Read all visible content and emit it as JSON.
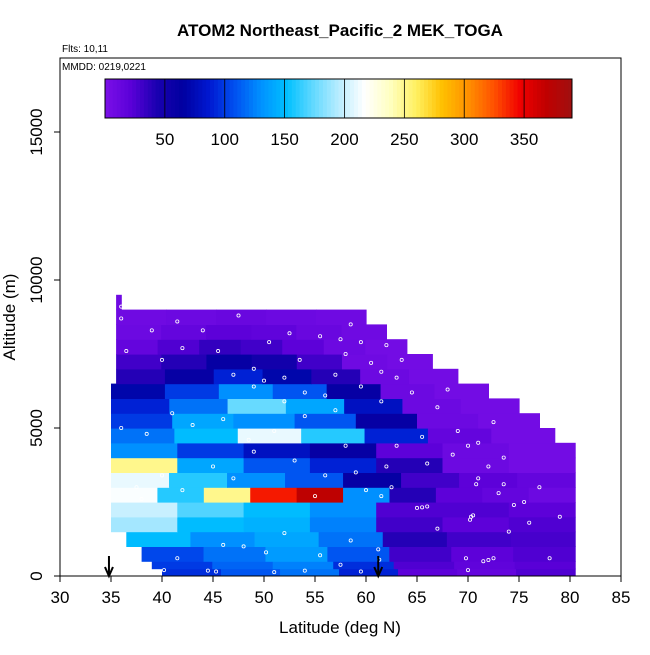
{
  "chart_data": {
    "type": "heatmap",
    "title": "ATOM2 Northeast_Pacific_2 MEK_TOGA",
    "annotations": {
      "flights": "Flts: 10,11",
      "dates": "MMDD: 0219,0221"
    },
    "xlabel": "Latitude (deg N)",
    "ylabel": "Altitude (m)",
    "xlim": [
      30,
      85
    ],
    "ylim": [
      0,
      17500
    ],
    "x_ticks": [
      "30",
      "35",
      "40",
      "45",
      "50",
      "55",
      "60",
      "65",
      "70",
      "75",
      "80",
      "85"
    ],
    "y_ticks": [
      "0",
      "5000",
      "10000",
      "15000"
    ],
    "colorbar": {
      "range": [
        0,
        390
      ],
      "tick_labels": [
        "50",
        "100",
        "150",
        "200",
        "250",
        "300",
        "350"
      ],
      "colors": [
        "#7B10E8",
        "#5A00D8",
        "#1A00B0",
        "#0000A0",
        "#0018D0",
        "#0050F0",
        "#0090FF",
        "#00C0FF",
        "#60D8FF",
        "#B8ECFF",
        "#FFFFFF",
        "#FFFFC0",
        "#FFF060",
        "#FFC000",
        "#FF9000",
        "#FF5000",
        "#F00000",
        "#C00000",
        "#A01010"
      ]
    },
    "curtain_rows": [
      {
        "alt_low": 0,
        "alt_high": 250,
        "lat_start": 40.0,
        "lat_end": 80.5,
        "values": [
          95,
          110,
          120,
          90,
          20,
          15,
          25
        ]
      },
      {
        "alt_low": 250,
        "alt_high": 500,
        "lat_start": 39.0,
        "lat_end": 80.5,
        "values": [
          100,
          115,
          125,
          95,
          25,
          18,
          22
        ]
      },
      {
        "alt_low": 500,
        "alt_high": 1000,
        "lat_start": 38.0,
        "lat_end": 80.5,
        "values": [
          105,
          120,
          135,
          110,
          30,
          20,
          25
        ]
      },
      {
        "alt_low": 1000,
        "alt_high": 1500,
        "lat_start": 36.5,
        "lat_end": 80.5,
        "values": [
          150,
          130,
          140,
          120,
          40,
          30,
          28
        ]
      },
      {
        "alt_low": 1500,
        "alt_high": 2000,
        "lat_start": 35.0,
        "lat_end": 80.5,
        "values": [
          190,
          150,
          145,
          125,
          30,
          20,
          25
        ]
      },
      {
        "alt_low": 2000,
        "alt_high": 2500,
        "lat_start": 35.0,
        "lat_end": 80.5,
        "values": [
          200,
          170,
          150,
          130,
          25,
          25,
          20
        ]
      },
      {
        "alt_low": 2500,
        "alt_high": 3000,
        "lat_start": 35.0,
        "lat_end": 80.5,
        "values": [
          215,
          160,
          250,
          340,
          370,
          130,
          40,
          20,
          15,
          10
        ]
      },
      {
        "alt_low": 3000,
        "alt_high": 3500,
        "lat_start": 35.0,
        "lat_end": 80.5,
        "values": [
          210,
          160,
          130,
          110,
          60,
          30,
          20,
          15
        ]
      },
      {
        "alt_low": 3500,
        "alt_high": 4000,
        "lat_start": 35.0,
        "lat_end": 80.5,
        "values": [
          250,
          140,
          110,
          90,
          40,
          10,
          5
        ]
      },
      {
        "alt_low": 4000,
        "alt_high": 4500,
        "lat_start": 35.0,
        "lat_end": 80.5,
        "values": [
          130,
          100,
          80,
          60,
          20,
          10,
          5
        ]
      },
      {
        "alt_low": 4500,
        "alt_high": 5000,
        "lat_start": 35.0,
        "lat_end": 78.5,
        "values": [
          120,
          150,
          210,
          160,
          90,
          15,
          5
        ]
      },
      {
        "alt_low": 5000,
        "alt_high": 5500,
        "lat_start": 35.0,
        "lat_end": 77.0,
        "values": [
          100,
          140,
          130,
          110,
          60,
          10,
          5
        ]
      },
      {
        "alt_low": 5500,
        "alt_high": 6000,
        "lat_start": 35.0,
        "lat_end": 75.0,
        "values": [
          90,
          120,
          175,
          140,
          80,
          10,
          5
        ]
      },
      {
        "alt_low": 6000,
        "alt_high": 6500,
        "lat_start": 35.0,
        "lat_end": 72.0,
        "values": [
          70,
          100,
          130,
          110,
          60,
          10,
          5
        ]
      },
      {
        "alt_low": 6500,
        "alt_high": 7000,
        "lat_start": 35.5,
        "lat_end": 69.0,
        "values": [
          40,
          60,
          90,
          70,
          40,
          10,
          5
        ]
      },
      {
        "alt_low": 7000,
        "alt_high": 7500,
        "lat_start": 35.5,
        "lat_end": 66.5,
        "values": [
          30,
          40,
          60,
          50,
          30,
          8,
          5
        ]
      },
      {
        "alt_low": 7500,
        "alt_high": 8000,
        "lat_start": 35.5,
        "lat_end": 64.0,
        "values": [
          15,
          25,
          35,
          30,
          20,
          10,
          5
        ]
      },
      {
        "alt_low": 8000,
        "alt_high": 8500,
        "lat_start": 35.5,
        "lat_end": 62.0,
        "values": [
          10,
          15,
          20,
          18,
          12,
          8
        ]
      },
      {
        "alt_low": 8500,
        "alt_high": 9000,
        "lat_start": 35.5,
        "lat_end": 60.0,
        "values": [
          8,
          10,
          12,
          10,
          8
        ]
      },
      {
        "alt_low": 9000,
        "alt_high": 9500,
        "lat_start": 35.5,
        "lat_end": 36.0,
        "values": [
          8
        ]
      }
    ],
    "flight_track_markers": [
      {
        "lat": 34.8,
        "description": "down arrow at latitude 34.8"
      },
      {
        "lat": 61.2,
        "description": "down arrow at latitude 61.2"
      }
    ],
    "sample_points": [
      [
        40.2,
        200
      ],
      [
        41.5,
        600
      ],
      [
        44.5,
        180
      ],
      [
        45.3,
        150
      ],
      [
        46.0,
        1050
      ],
      [
        48.0,
        1000
      ],
      [
        50.2,
        800
      ],
      [
        51.0,
        130
      ],
      [
        52.0,
        1450
      ],
      [
        54.0,
        180
      ],
      [
        55.5,
        700
      ],
      [
        57.5,
        380
      ],
      [
        58.5,
        1200
      ],
      [
        59.5,
        150
      ],
      [
        61.2,
        900
      ],
      [
        61.3,
        550
      ],
      [
        61.5,
        2700
      ],
      [
        62.5,
        3000
      ],
      [
        65.0,
        2300
      ],
      [
        65.5,
        2320
      ],
      [
        66.0,
        2350
      ],
      [
        67.0,
        1600
      ],
      [
        69.8,
        600
      ],
      [
        70.0,
        200
      ],
      [
        70.2,
        1900
      ],
      [
        70.3,
        2000
      ],
      [
        70.5,
        2050
      ],
      [
        70.8,
        3100
      ],
      [
        71.5,
        500
      ],
      [
        72.0,
        540
      ],
      [
        72.5,
        600
      ],
      [
        73.0,
        2800
      ],
      [
        73.5,
        3100
      ],
      [
        74.0,
        1500
      ],
      [
        75.5,
        2500
      ],
      [
        76.0,
        1800
      ],
      [
        77.0,
        3000
      ],
      [
        78.0,
        600
      ],
      [
        79.0,
        2000
      ],
      [
        37.5,
        3000
      ],
      [
        38.0,
        2600
      ],
      [
        40.0,
        3400
      ],
      [
        42.0,
        2900
      ],
      [
        45.0,
        3700
      ],
      [
        47.0,
        3300
      ],
      [
        49.0,
        4200
      ],
      [
        53.0,
        3900
      ],
      [
        55.0,
        2700
      ],
      [
        56.0,
        3400
      ],
      [
        58.0,
        4400
      ],
      [
        59.0,
        3500
      ],
      [
        60.0,
        2900
      ],
      [
        62.0,
        3700
      ],
      [
        63.0,
        4400
      ],
      [
        66.0,
        3800
      ],
      [
        68.5,
        4100
      ],
      [
        70.0,
        4400
      ],
      [
        71.0,
        3300
      ],
      [
        72.0,
        3700
      ],
      [
        74.5,
        2400
      ],
      [
        36.0,
        5000
      ],
      [
        38.5,
        4800
      ],
      [
        41.0,
        5500
      ],
      [
        43.0,
        5100
      ],
      [
        46.0,
        5300
      ],
      [
        48.5,
        4600
      ],
      [
        51.0,
        4900
      ],
      [
        52.0,
        5900
      ],
      [
        54.0,
        5400
      ],
      [
        56.0,
        6100
      ],
      [
        57.0,
        5600
      ],
      [
        59.5,
        6400
      ],
      [
        61.5,
        5900
      ],
      [
        63.0,
        6700
      ],
      [
        64.5,
        6200
      ],
      [
        65.5,
        4700
      ],
      [
        67.0,
        5700
      ],
      [
        68.0,
        6300
      ],
      [
        69.0,
        4900
      ],
      [
        71.0,
        4500
      ],
      [
        72.5,
        5200
      ],
      [
        73.5,
        4000
      ],
      [
        36.5,
        7600
      ],
      [
        40.0,
        7300
      ],
      [
        42.0,
        7700
      ],
      [
        45.5,
        7600
      ],
      [
        47.0,
        6800
      ],
      [
        49.0,
        6400
      ],
      [
        50.5,
        7900
      ],
      [
        52.5,
        8200
      ],
      [
        53.5,
        7300
      ],
      [
        55.5,
        8100
      ],
      [
        57.0,
        6800
      ],
      [
        58.0,
        7500
      ],
      [
        58.5,
        8500
      ],
      [
        59.5,
        7900
      ],
      [
        60.5,
        7200
      ],
      [
        61.5,
        6900
      ],
      [
        62.0,
        7800
      ],
      [
        63.5,
        7300
      ],
      [
        36.0,
        9100
      ],
      [
        36.0,
        8700
      ],
      [
        39.0,
        8300
      ],
      [
        41.5,
        8600
      ],
      [
        44.0,
        8300
      ],
      [
        47.5,
        8800
      ],
      [
        49.0,
        7000
      ],
      [
        50.0,
        6600
      ],
      [
        52.0,
        6700
      ],
      [
        54.0,
        6200
      ],
      [
        57.5,
        8000
      ]
    ]
  }
}
